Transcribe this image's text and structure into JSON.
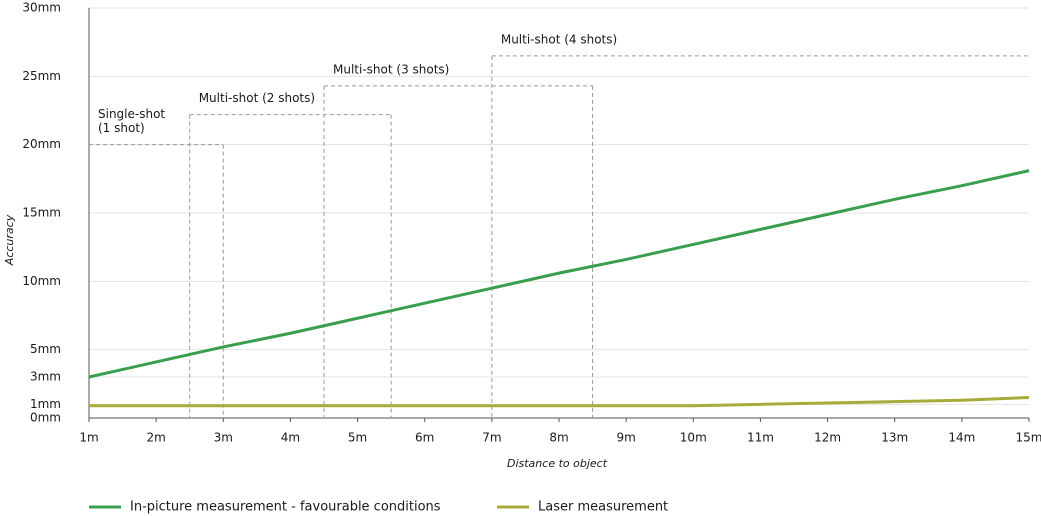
{
  "chart_data": {
    "type": "line",
    "x_label": "Distance to object",
    "y_label": "Accuracy",
    "x": [
      1,
      2,
      3,
      4,
      5,
      6,
      7,
      8,
      9,
      10,
      11,
      12,
      13,
      14,
      15
    ],
    "series": [
      {
        "name": "In-picture measurement - favourable conditions",
        "color": "#3a9e4f",
        "values": [
          3.0,
          4.1,
          5.2,
          6.2,
          7.3,
          8.4,
          9.5,
          10.6,
          11.6,
          12.7,
          13.8,
          14.9,
          16.0,
          17.0,
          18.1
        ]
      },
      {
        "name": "Laser measurement",
        "color": "#a8ab3a",
        "values": [
          0.9,
          0.9,
          0.9,
          0.9,
          0.9,
          0.9,
          0.9,
          0.9,
          0.9,
          0.9,
          1.0,
          1.1,
          1.2,
          1.3,
          1.5
        ]
      }
    ],
    "regions": [
      {
        "label": [
          "Single-shot",
          "(1 shot)"
        ],
        "x_start": 1,
        "x_end": 3,
        "value": 20
      },
      {
        "label": [
          "Multi-shot (2 shots)"
        ],
        "x_start": 2.5,
        "x_end": 5.5,
        "value": 22.2
      },
      {
        "label": [
          "Multi-shot (3 shots)"
        ],
        "x_start": 4.5,
        "x_end": 8.5,
        "value": 24.3
      },
      {
        "label": [
          "Multi-shot (4 shots)"
        ],
        "x_start": 7,
        "x_end": 15,
        "value": 26.5
      }
    ],
    "xlim": [
      1,
      15
    ],
    "ylim": [
      0,
      30
    ],
    "xticks": [
      {
        "value": 1,
        "label": "1m"
      },
      {
        "value": 2,
        "label": "2m"
      },
      {
        "value": 3,
        "label": "3m"
      },
      {
        "value": 4,
        "label": "4m"
      },
      {
        "value": 5,
        "label": "5m"
      },
      {
        "value": 6,
        "label": "6m"
      },
      {
        "value": 7,
        "label": "7m"
      },
      {
        "value": 8,
        "label": "8m"
      },
      {
        "value": 9,
        "label": "9m"
      },
      {
        "value": 10,
        "label": "10m"
      },
      {
        "value": 11,
        "label": "11m"
      },
      {
        "value": 12,
        "label": "12m"
      },
      {
        "value": 13,
        "label": "13m"
      },
      {
        "value": 14,
        "label": "14m"
      },
      {
        "value": 15,
        "label": "15m"
      }
    ],
    "yticks": [
      {
        "value": 0,
        "label": "0mm"
      },
      {
        "value": 1,
        "label": "1mm"
      },
      {
        "value": 3,
        "label": "3mm"
      },
      {
        "value": 5,
        "label": "5mm"
      },
      {
        "value": 10,
        "label": "10mm"
      },
      {
        "value": 15,
        "label": "15mm"
      },
      {
        "value": 20,
        "label": "20mm"
      },
      {
        "value": 25,
        "label": "25mm"
      },
      {
        "value": 30,
        "label": "30mm"
      }
    ],
    "grid": true,
    "legend": "bottom"
  }
}
